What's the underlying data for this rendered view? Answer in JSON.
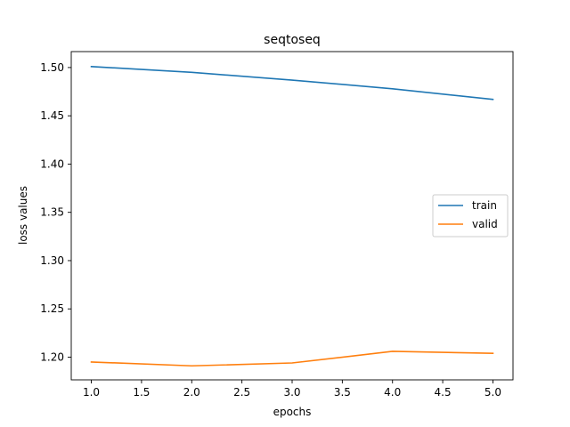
{
  "chart_data": {
    "type": "line",
    "title": "seqtoseq",
    "xlabel": "epochs",
    "ylabel": "loss values",
    "x": [
      1,
      2,
      3,
      4,
      5
    ],
    "xlim": [
      0.8,
      5.2
    ],
    "ylim": [
      1.1765,
      1.5165
    ],
    "xticks": [
      1.0,
      1.5,
      2.0,
      2.5,
      3.0,
      3.5,
      4.0,
      4.5,
      5.0
    ],
    "yticks": [
      1.2,
      1.25,
      1.3,
      1.35,
      1.4,
      1.45,
      1.5
    ],
    "grid": false,
    "legend_position": "center-right",
    "series": [
      {
        "name": "train",
        "color": "#1f77b4",
        "values": [
          1.501,
          1.495,
          1.487,
          1.478,
          1.467
        ]
      },
      {
        "name": "valid",
        "color": "#ff7f0e",
        "values": [
          1.195,
          1.191,
          1.194,
          1.206,
          1.204
        ]
      }
    ]
  }
}
